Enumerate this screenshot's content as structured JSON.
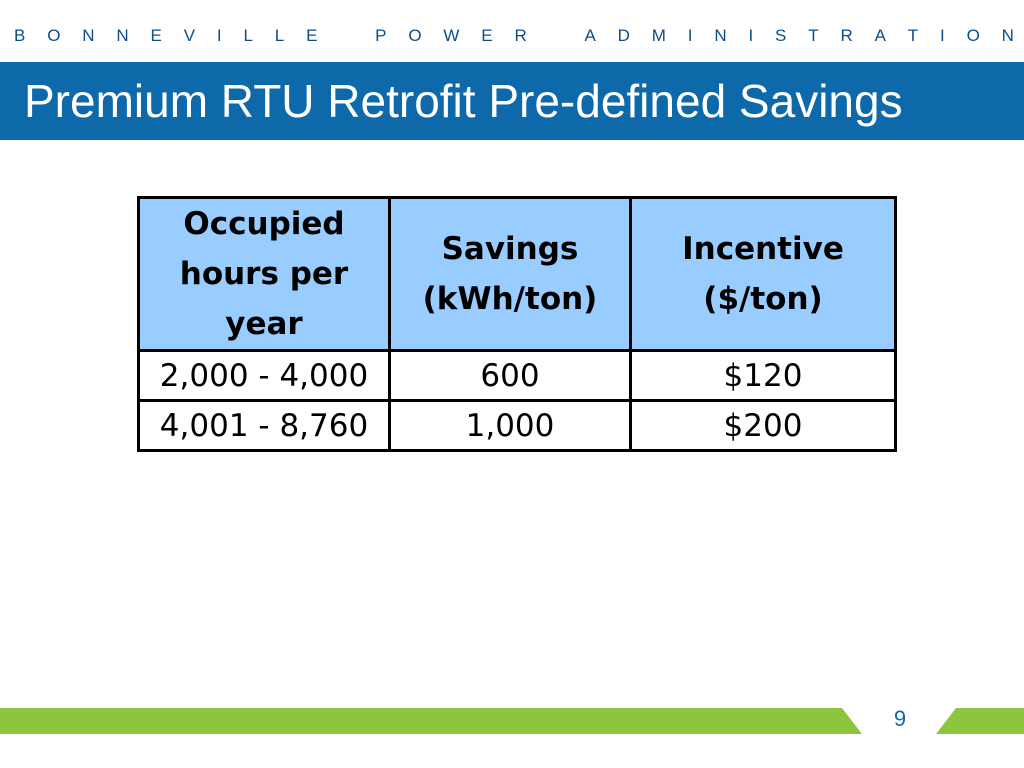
{
  "header": {
    "org_letters": [
      "B",
      "O",
      "N",
      "N",
      "E",
      "V",
      "I",
      "L",
      "L",
      "E",
      " ",
      "P",
      "O",
      "W",
      "E",
      "R",
      " ",
      "A",
      "D",
      "M",
      "I",
      "N",
      "I",
      "S",
      "T",
      "R",
      "A",
      "T",
      "I",
      "O",
      "N"
    ]
  },
  "slide": {
    "title": "Premium RTU Retrofit Pre-defined Savings",
    "page_number": "9"
  },
  "table": {
    "headers": [
      [
        "Occupied",
        "hours per",
        "year"
      ],
      [
        "Savings",
        "(kWh/ton)"
      ],
      [
        "Incentive",
        "($/ton)"
      ]
    ],
    "rows": [
      [
        "2,000 - 4,000",
        "600",
        "$120"
      ],
      [
        "4,001 - 8,760",
        "1,000",
        "$200"
      ]
    ]
  },
  "colors": {
    "title_bar": "#0e69ab",
    "header_text": "#0e4d86",
    "table_header_bg": "#99ccff",
    "footer_green": "#8cc63f"
  }
}
